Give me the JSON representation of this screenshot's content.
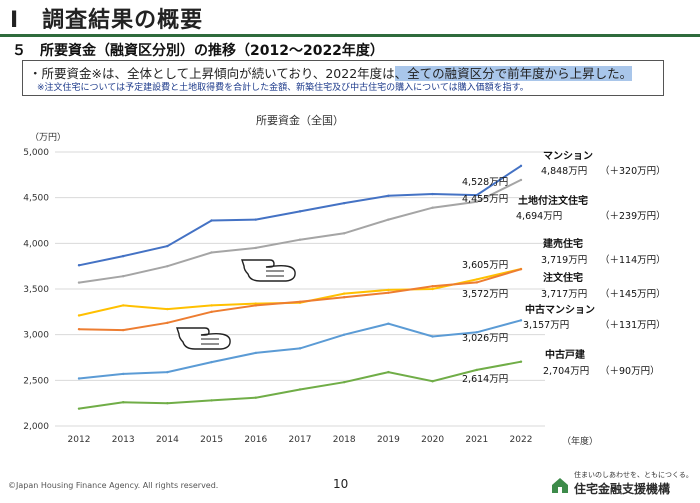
{
  "slide_title": "Ⅰ　調査結果の概要",
  "section_heading": "５　所要資金（融資区分別）の推移（2012～2022年度）",
  "note": {
    "line1_plain": "・所要資金※は、全体として上昇傾向が続いており、2022年度は",
    "line1_highlight": "、全ての融資区分で前年度から上昇した。",
    "line2": "※注文住宅については予定建設費と土地取得費を合計した金額、新築住宅及び中古住宅の購入については購入価額を指す。"
  },
  "footer": {
    "copyright": "©Japan Housing Finance Agency. All rights reserved.",
    "page_number": "10",
    "tagline": "住まいのしあわせを、ともにつくる。",
    "org_name": "住宅金融支援機構"
  },
  "chart_data": {
    "type": "line",
    "title": "所要資金（全国）",
    "y_unit_label": "（万円）",
    "x_unit_label": "（年度）",
    "x": [
      2012,
      2013,
      2014,
      2015,
      2016,
      2017,
      2018,
      2019,
      2020,
      2021,
      2022
    ],
    "ylim": [
      2000,
      5000
    ],
    "yticks": [
      2000,
      2500,
      3000,
      3500,
      4000,
      4500,
      5000
    ],
    "ytick_labels": [
      "2,000",
      "2,500",
      "3,000",
      "3,500",
      "4,000",
      "4,500",
      "5,000"
    ],
    "grid": true,
    "series": [
      {
        "name": "マンション",
        "color": "#4472c4",
        "values": [
          3760,
          3860,
          3970,
          4250,
          4260,
          4350,
          4440,
          4520,
          4540,
          4528,
          4848
        ],
        "label": "マンション",
        "value_label": "4,848万円",
        "delta_label": "（＋320万円）"
      },
      {
        "name": "土地付注文住宅",
        "color": "#a5a5a5",
        "values": [
          3570,
          3640,
          3750,
          3900,
          3950,
          4040,
          4110,
          4260,
          4390,
          4455,
          4694
        ],
        "label": "土地付注文住宅",
        "value_label": "4,694万円",
        "delta_label": "（＋239万円）"
      },
      {
        "name": "建売住宅",
        "color": "#ffc000",
        "values": [
          3210,
          3320,
          3280,
          3320,
          3340,
          3350,
          3450,
          3490,
          3500,
          3605,
          3719
        ],
        "label": "建売住宅",
        "value_label": "3,719万円",
        "delta_label": "（＋114万円）"
      },
      {
        "name": "注文住宅",
        "color": "#ed7d31",
        "values": [
          3060,
          3050,
          3130,
          3250,
          3320,
          3360,
          3410,
          3460,
          3530,
          3572,
          3717
        ],
        "label": "注文住宅",
        "value_label": "3,717万円",
        "delta_label": "（＋145万円）"
      },
      {
        "name": "中古マンション",
        "color": "#5b9bd5",
        "values": [
          2520,
          2570,
          2590,
          2700,
          2800,
          2850,
          3000,
          3120,
          2980,
          3026,
          3157
        ],
        "label": "中古マンション",
        "value_label": "3,157万円",
        "delta_label": "（＋131万円）"
      },
      {
        "name": "中古戸建",
        "color": "#70ad47",
        "values": [
          2190,
          2260,
          2250,
          2280,
          2310,
          2400,
          2480,
          2590,
          2490,
          2614,
          2704
        ],
        "label": "中古戸建",
        "value_label": "2,704万円",
        "delta_label": "（＋90万円）"
      }
    ],
    "annotations_2021": [
      "4,528万円",
      "4,455万円",
      "3,605万円",
      "3,572万円",
      "3,026万円",
      "2,614万円"
    ]
  }
}
